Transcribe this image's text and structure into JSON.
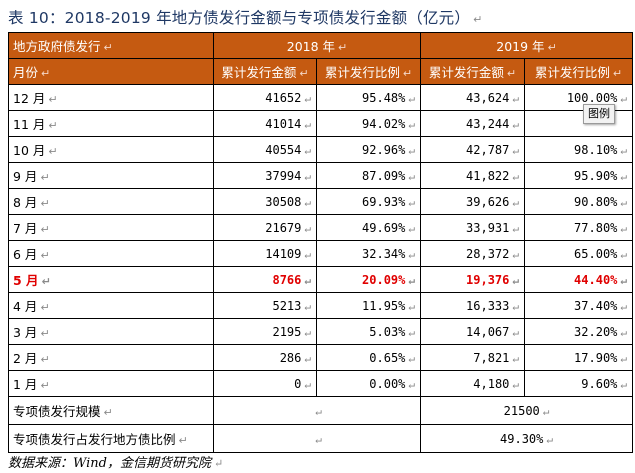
{
  "title": "表 10：2018-2019 年地方债发行金额与专项债发行金额（亿元）",
  "header": {
    "region_label": "地方政府债发行",
    "year_2018": "2018 年",
    "year_2019": "2019 年",
    "month_label": "月份",
    "amount_2018": "累计发行金额",
    "ratio_2018": "累计发行比例",
    "amount_2019": "累计发行金额",
    "ratio_2019": "累计发行比例"
  },
  "rows": [
    {
      "month": "12 月",
      "a2018": "41652",
      "r2018": "95.48%",
      "a2019": "43,624",
      "r2019": "100.00%"
    },
    {
      "month": "11 月",
      "a2018": "41014",
      "r2018": "94.02%",
      "a2019": "43,244",
      "r2019": ""
    },
    {
      "month": "10 月",
      "a2018": "40554",
      "r2018": "92.96%",
      "a2019": "42,787",
      "r2019": "98.10%"
    },
    {
      "month": "9 月",
      "a2018": "37994",
      "r2018": "87.09%",
      "a2019": "41,822",
      "r2019": "95.90%"
    },
    {
      "month": "8 月",
      "a2018": "30508",
      "r2018": "69.93%",
      "a2019": "39,626",
      "r2019": "90.80%"
    },
    {
      "month": "7 月",
      "a2018": "21679",
      "r2018": "49.69%",
      "a2019": "33,931",
      "r2019": "77.80%"
    },
    {
      "month": "6 月",
      "a2018": "14109",
      "r2018": "32.34%",
      "a2019": "28,372",
      "r2019": "65.00%"
    },
    {
      "month": "5 月",
      "a2018": "8766",
      "r2018": "20.09%",
      "a2019": "19,376",
      "r2019": "44.40%"
    },
    {
      "month": "4 月",
      "a2018": "5213",
      "r2018": "11.95%",
      "a2019": "16,333",
      "r2019": "37.40%"
    },
    {
      "month": "3 月",
      "a2018": "2195",
      "r2018": "5.03%",
      "a2019": "14,067",
      "r2019": "32.20%"
    },
    {
      "month": "2 月",
      "a2018": "286",
      "r2018": "0.65%",
      "a2019": "7,821",
      "r2019": "17.90%"
    },
    {
      "month": "1 月",
      "a2018": "0",
      "r2018": "0.00%",
      "a2019": "4,180",
      "r2019": "9.60%"
    }
  ],
  "footer": {
    "scale_label": "专项债发行规模",
    "scale_2019": "21500",
    "ratio_label": "专项债发行占发行地方债比例",
    "ratio_2019": "49.30%"
  },
  "source": "数据来源：Wind，金信期货研究院",
  "tooltip": "图例",
  "colors": {
    "header_bg": "#c55a11",
    "highlight_text": "#e00000",
    "title": "#1f3864"
  }
}
